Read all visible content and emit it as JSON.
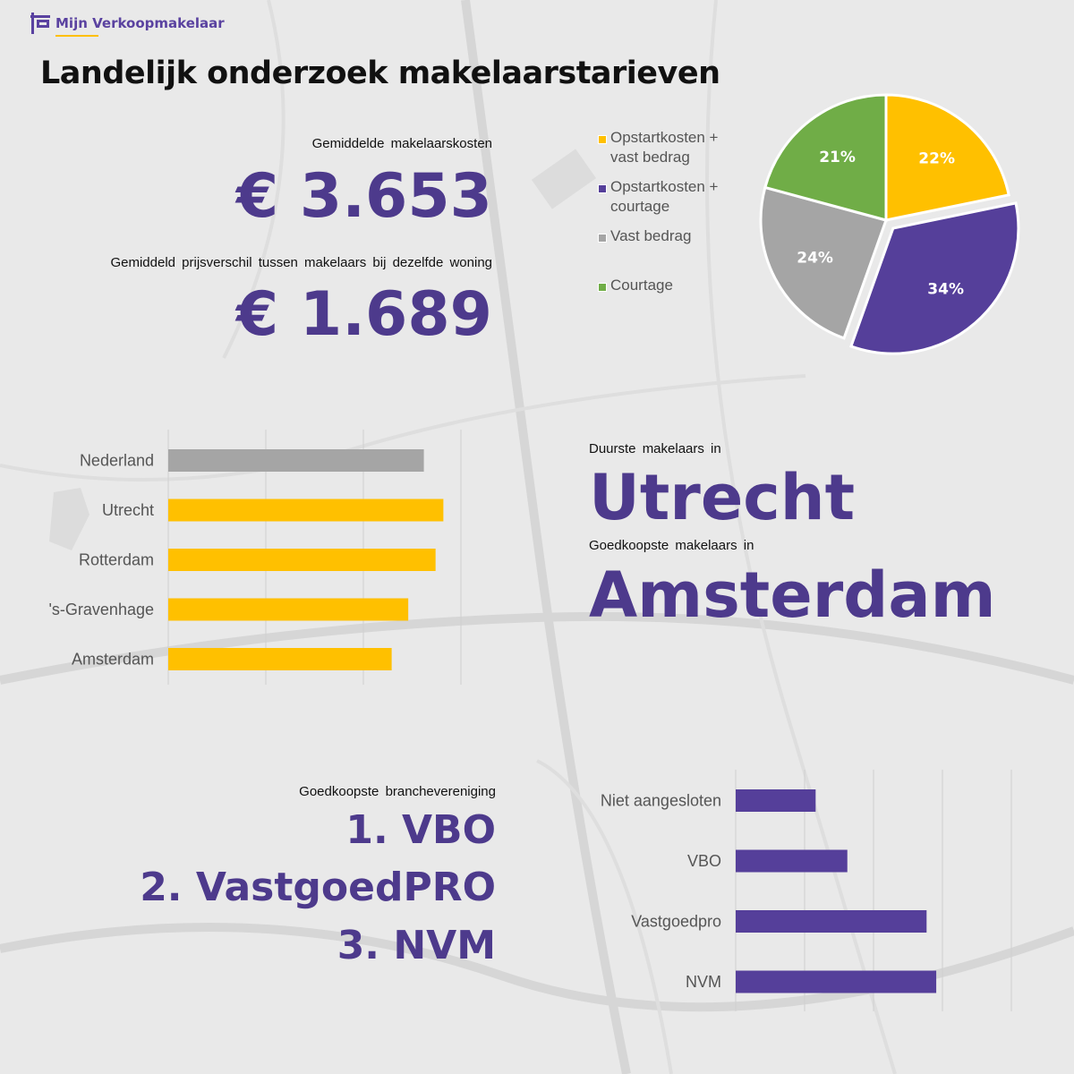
{
  "logo": {
    "text": "Mijn Verkoopmakelaar",
    "icon": "for-sale-sign-icon"
  },
  "title": "Landelijk onderzoek makelaarstarieven",
  "stats": {
    "avg_cost_label": "Gemiddelde makelaarskosten",
    "avg_cost_value": "€ 3.653",
    "price_diff_label": "Gemiddeld prijsverschil tussen makelaars bij dezelfde woning",
    "price_diff_value": "€ 1.689",
    "most_expensive_label": "Duurste makelaars in",
    "most_expensive_value": "Utrecht",
    "cheapest_label": "Goedkoopste makelaars in",
    "cheapest_value": "Amsterdam",
    "assoc_label": "Goedkoopste branchevereniging",
    "assoc_ranking": [
      "1. VBO",
      "2. VastgoedPRO",
      "3. NVM"
    ]
  },
  "colors": {
    "purple": "#553f9a",
    "yellow": "#ffc000",
    "gray": "#a5a5a5",
    "green": "#70ad47",
    "text_purple": "#4d3a8c"
  },
  "chart_data": [
    {
      "type": "pie",
      "legend_placement": "left",
      "slices": [
        {
          "label": "Opstartkosten + vast bedrag",
          "value": 22,
          "display": "22%",
          "color": "#ffc000"
        },
        {
          "label": "Opstartkosten + courtage",
          "value": 34,
          "display": "34%",
          "color": "#553f9a",
          "exploded": true
        },
        {
          "label": "Vast bedrag",
          "value": 24,
          "display": "24%",
          "color": "#a5a5a5"
        },
        {
          "label": "Courtage",
          "value": 21,
          "display": "21%",
          "color": "#70ad47"
        }
      ]
    },
    {
      "type": "bar",
      "orientation": "horizontal",
      "grid": true,
      "xlim": [
        0,
        3
      ],
      "categories": [
        "Nederland",
        "Utrecht",
        "Rotterdam",
        "'s-Gravenhage",
        "Amsterdam"
      ],
      "values": [
        2.62,
        2.82,
        2.74,
        2.46,
        2.29
      ],
      "colors": [
        "#a5a5a5",
        "#ffc000",
        "#ffc000",
        "#ffc000",
        "#ffc000"
      ]
    },
    {
      "type": "bar",
      "orientation": "horizontal",
      "grid": true,
      "xlim": [
        0,
        4
      ],
      "categories": [
        "Niet aangesloten",
        "VBO",
        "Vastgoedpro",
        "NVM"
      ],
      "values": [
        1.16,
        1.62,
        2.77,
        2.91
      ],
      "colors": [
        "#553f9a",
        "#553f9a",
        "#553f9a",
        "#553f9a"
      ]
    }
  ]
}
